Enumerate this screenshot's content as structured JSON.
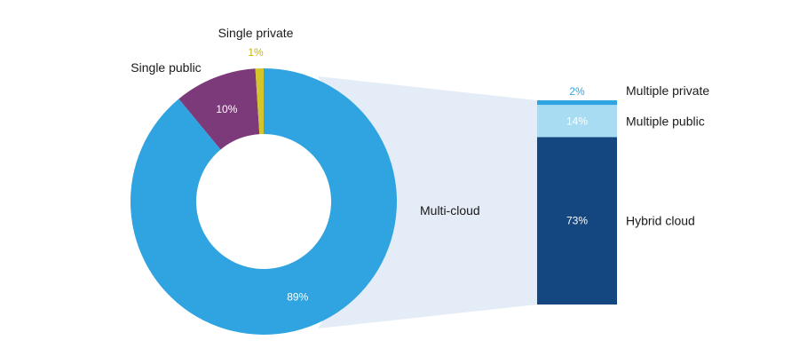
{
  "chart_data": [
    {
      "type": "pie",
      "variant": "donut",
      "slices": [
        {
          "label": "Multi-cloud",
          "value": 89,
          "value_label": "89%",
          "color": "#2fa4e0",
          "label_color": "#1a1a1a",
          "value_color": "#ffffff"
        },
        {
          "label": "Single public",
          "value": 10,
          "value_label": "10%",
          "color": "#7d3a7a",
          "label_color": "#1a1a1a",
          "value_color": "#ffffff"
        },
        {
          "label": "Single private",
          "value": 1,
          "value_label": "1%",
          "color": "#d3c52a",
          "label_color": "#1a1a1a",
          "value_color": "#c8b400"
        }
      ]
    },
    {
      "type": "bar",
      "variant": "stacked-100",
      "segments": [
        {
          "label": "Hybrid cloud",
          "value": 73,
          "value_label": "73%",
          "color": "#14467f",
          "label_color": "#2a3f6e",
          "value_color": "#ffffff"
        },
        {
          "label": "Multiple public",
          "value": 14,
          "value_label": "14%",
          "color": "#a8dcf2",
          "label_color": "#7ec6ea",
          "value_color": "#ffffff"
        },
        {
          "label": "Multiple private",
          "value": 2,
          "value_label": "2%",
          "color": "#2fa4e0",
          "label_color": "#2fa4e0",
          "value_color": "#2fa4e0"
        }
      ]
    }
  ],
  "colors": {
    "connector": "#e4ecf7"
  }
}
